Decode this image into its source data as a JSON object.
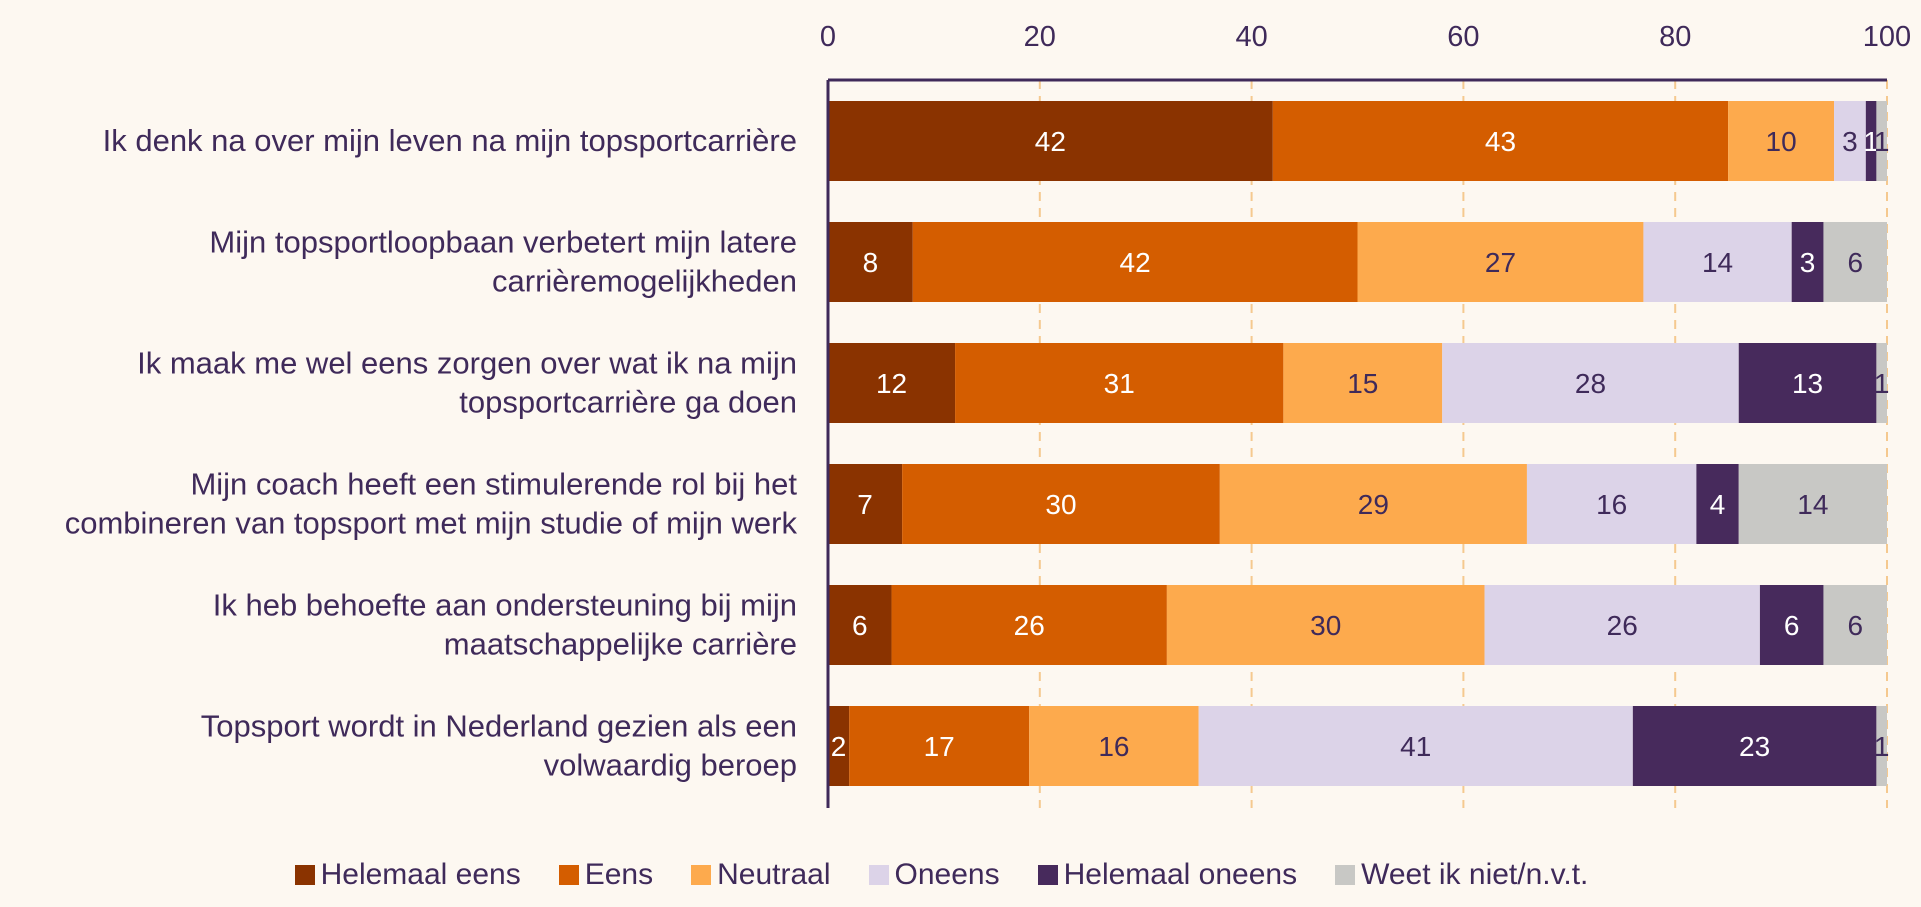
{
  "chart_data": {
    "type": "bar",
    "orientation": "horizontal",
    "stacked": true,
    "title": "",
    "xlabel": "",
    "ylabel": "",
    "xlim": [
      0,
      100
    ],
    "x_ticks": [
      0,
      20,
      40,
      60,
      80,
      100
    ],
    "x_axis_position": "top",
    "grid": true,
    "legend_position": "bottom",
    "categories": [
      "Ik denk na over mijn leven na mijn topsportcarrière",
      "Mijn topsportloopbaan verbetert mijn latere carrièremogelijkheden",
      "Ik maak me wel eens zorgen over wat ik na mijn topsportcarrière ga doen",
      "Mijn coach heeft een stimulerende rol bij het combineren van topsport met mijn studie of mijn werk",
      "Ik heb behoefte aan ondersteuning bij mijn maatschappelijke carrière",
      "Topsport wordt in Nederland gezien als een volwaardig beroep"
    ],
    "category_lines": [
      [
        "Ik denk na over mijn leven na mijn topsportcarrière"
      ],
      [
        "Mijn topsportloopbaan verbetert mijn latere",
        "carrièremogelijkheden"
      ],
      [
        "Ik maak me wel eens zorgen over wat ik na mijn",
        "topsportcarrière ga doen"
      ],
      [
        "Mijn coach heeft een stimulerende rol bij het",
        "combineren van topsport met mijn studie of mijn werk"
      ],
      [
        "Ik heb behoefte aan ondersteuning bij mijn",
        "maatschappelijke carrière"
      ],
      [
        "Topsport wordt in Nederland gezien als een",
        "volwaardig beroep"
      ]
    ],
    "series": [
      {
        "name": "Helemaal eens",
        "color": "#8a3300",
        "text_color": "#ffffff",
        "values": [
          42,
          8,
          12,
          7,
          6,
          2
        ]
      },
      {
        "name": "Eens",
        "color": "#d45d00",
        "text_color": "#ffffff",
        "values": [
          43,
          42,
          31,
          30,
          26,
          17
        ]
      },
      {
        "name": "Neutraal",
        "color": "#fdaa4d",
        "text_color": "#3f2a5a",
        "values": [
          10,
          27,
          15,
          29,
          30,
          16
        ]
      },
      {
        "name": "Oneens",
        "color": "#dcd3e8",
        "text_color": "#3f2a5a",
        "values": [
          3,
          14,
          28,
          16,
          26,
          41
        ]
      },
      {
        "name": "Helemaal oneens",
        "color": "#472a5c",
        "text_color": "#ffffff",
        "values": [
          1,
          3,
          13,
          4,
          6,
          23
        ]
      },
      {
        "name": "Weet ik niet/n.v.t.",
        "color": "#c8c8c5",
        "text_color": "#3f2a5a",
        "values": [
          1,
          6,
          1,
          14,
          6,
          1
        ]
      }
    ],
    "data_labels": [
      [
        "42",
        "43",
        "10",
        "3",
        "1",
        "1"
      ],
      [
        "8",
        "42",
        "27",
        "14",
        "3",
        "6"
      ],
      [
        "12",
        "31",
        "15",
        "28",
        "13",
        "1"
      ],
      [
        "7",
        "30",
        "29",
        "16",
        "4",
        "14"
      ],
      [
        "6",
        "26",
        "30",
        "26",
        "6",
        "6"
      ],
      [
        "2",
        "17",
        "16",
        "41",
        "23",
        "1"
      ]
    ],
    "colors": {
      "axis": "#3f2a5a",
      "grid": "#f5c98f",
      "text": "#3f2a5a",
      "background": "#fdf8f1"
    }
  }
}
